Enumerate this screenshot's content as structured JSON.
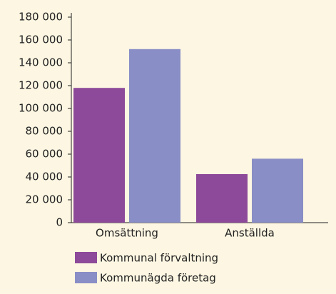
{
  "chart_data": {
    "type": "bar",
    "categories": [
      "Omsättning",
      "Anställda"
    ],
    "series": [
      {
        "name": "Kommunal förvaltning",
        "color": "#8e4a9a",
        "values": [
          118000,
          42500
        ]
      },
      {
        "name": "Kommunägda företag",
        "color": "#8a8ec6",
        "values": [
          152000,
          56000
        ]
      }
    ],
    "ylim": [
      0,
      180000
    ],
    "yticks": [
      0,
      {
        "value": 20000,
        "label": "20 000"
      },
      {
        "value": 40000,
        "label": "40 000"
      },
      {
        "value": 60000,
        "label": "60 000"
      },
      {
        "value": 80000,
        "label": "80 000"
      },
      {
        "value": 100000,
        "label": "100 000"
      },
      {
        "value": 120000,
        "label": "120 000"
      },
      {
        "value": 140000,
        "label": "140 000"
      },
      {
        "value": 160000,
        "label": "160 000"
      },
      {
        "value": 180000,
        "label": "180 000"
      }
    ],
    "grid": false
  }
}
